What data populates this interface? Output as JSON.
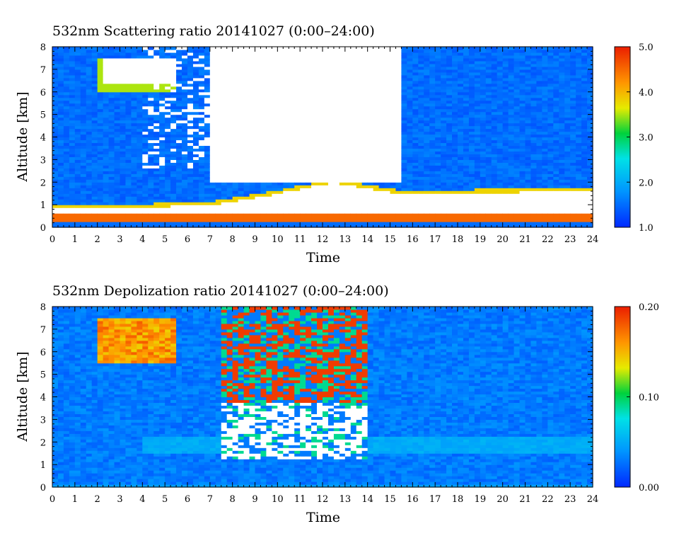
{
  "chart_data": [
    {
      "type": "heatmap",
      "title": "532nm Scattering ratio  20141027 (0:00–24:00)",
      "xlabel": "Time",
      "ylabel": "Altitude [km]",
      "x_ticks": [
        "0",
        "1",
        "2",
        "3",
        "4",
        "5",
        "6",
        "7",
        "8",
        "9",
        "10",
        "11",
        "12",
        "13",
        "14",
        "15",
        "16",
        "17",
        "18",
        "19",
        "20",
        "21",
        "22",
        "23",
        "24"
      ],
      "y_ticks": [
        "0",
        "1",
        "2",
        "3",
        "4",
        "5",
        "6",
        "7",
        "8"
      ],
      "xlim": [
        0,
        24
      ],
      "ylim": [
        0,
        8
      ],
      "colorbar": {
        "min": 1.0,
        "max": 5.0,
        "ticks": [
          "1.0",
          "2.0",
          "3.0",
          "4.0",
          "5.0"
        ]
      },
      "features": {
        "background_value": 1.5,
        "near_ground_layer": {
          "altitude_range_km": [
            0.3,
            0.6
          ],
          "value": 4.5
        },
        "boundary_layer_top_km": [
          [
            0,
            0.9
          ],
          [
            4,
            0.9
          ],
          [
            7,
            1.0
          ],
          [
            10,
            1.5
          ],
          [
            12.5,
            2.0
          ],
          [
            15.5,
            1.5
          ],
          [
            24,
            1.6
          ]
        ],
        "saturated_cloud_above_value": 5.0,
        "cirrus_cloud": {
          "time_h": [
            2,
            5.5
          ],
          "altitude_km": [
            6.0,
            7.5
          ]
        },
        "thick_cloud_no_signal": {
          "time_h": [
            7.0,
            15.5
          ],
          "altitude_km": [
            2.0,
            8.0
          ]
        }
      }
    },
    {
      "type": "heatmap",
      "title": "532nm Depolization ratio  20141027 (0:00–24:00)",
      "xlabel": "Time",
      "ylabel": "Altitude [km]",
      "x_ticks": [
        "0",
        "1",
        "2",
        "3",
        "4",
        "5",
        "6",
        "7",
        "8",
        "9",
        "10",
        "11",
        "12",
        "13",
        "14",
        "15",
        "16",
        "17",
        "18",
        "19",
        "20",
        "21",
        "22",
        "23",
        "24"
      ],
      "y_ticks": [
        "0",
        "1",
        "2",
        "3",
        "4",
        "5",
        "6",
        "7",
        "8"
      ],
      "xlim": [
        0,
        24
      ],
      "ylim": [
        0,
        8
      ],
      "colorbar": {
        "min": 0.0,
        "max": 0.2,
        "ticks": [
          "0.00",
          "0.10",
          "0.20"
        ]
      },
      "features": {
        "background_value": 0.03,
        "cirrus_cloud": {
          "time_h": [
            2,
            5.5
          ],
          "altitude_km": [
            5.5,
            7.5
          ],
          "value": 0.18
        },
        "noisy_high_depolarization": {
          "time_h": [
            7.5,
            14
          ],
          "altitude_km": [
            1.3,
            8.0
          ]
        },
        "aerosol_layer": {
          "time_h": [
            4,
            24
          ],
          "altitude_km": [
            1.5,
            2.3
          ],
          "value": 0.05
        }
      }
    }
  ]
}
